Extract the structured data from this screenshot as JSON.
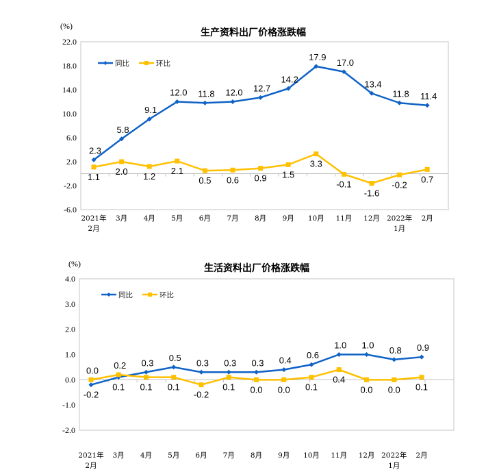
{
  "chart_data": [
    {
      "type": "line",
      "title": "生产资料出厂价格涨跌幅",
      "unit_label": "(%)",
      "categories": [
        [
          "2021年",
          "2月"
        ],
        [
          "3月"
        ],
        [
          "4月"
        ],
        [
          "5月"
        ],
        [
          "6月"
        ],
        [
          "7月"
        ],
        [
          "8月"
        ],
        [
          "9月"
        ],
        [
          "10月"
        ],
        [
          "11月"
        ],
        [
          "12月"
        ],
        [
          "2022年",
          "1月"
        ],
        [
          "2月"
        ]
      ],
      "yticks": [
        "22.0",
        "18.0",
        "14.0",
        "10.0",
        "6.0",
        "2.0",
        "-2.0",
        "-6.0"
      ],
      "ytick_values": [
        22,
        18,
        14,
        10,
        6,
        2,
        -2,
        -6
      ],
      "ylim": [
        -6,
        22
      ],
      "legend_position": "top-left",
      "series": [
        {
          "name": "同比",
          "color": "#0F62C7",
          "marker": "diamond",
          "values": [
            2.3,
            5.8,
            9.1,
            12.0,
            11.8,
            12.0,
            12.7,
            14.2,
            17.9,
            17.0,
            13.4,
            11.8,
            11.4
          ],
          "labels": [
            "2.3",
            "5.8",
            "9.1",
            "12.0",
            "11.8",
            "12.0",
            "12.7",
            "14.2",
            "17.9",
            "17.0",
            "13.4",
            "11.8",
            "11.4"
          ]
        },
        {
          "name": "环比",
          "color": "#FFC000",
          "marker": "square",
          "values": [
            1.1,
            2.0,
            1.2,
            2.1,
            0.5,
            0.6,
            0.9,
            1.5,
            3.3,
            -0.1,
            -1.6,
            -0.2,
            0.7
          ],
          "labels": [
            "1.1",
            "2.0",
            "1.2",
            "2.1",
            "0.5",
            "0.6",
            "0.9",
            "1.5",
            "3.3",
            "-0.1",
            "-1.6",
            "-0.2",
            "0.7"
          ]
        }
      ]
    },
    {
      "type": "line",
      "title": "生活资料出厂价格涨跌幅",
      "unit_label": "(%)",
      "categories": [
        [
          "2021年",
          "2月"
        ],
        [
          "3月"
        ],
        [
          "4月"
        ],
        [
          "5月"
        ],
        [
          "6月"
        ],
        [
          "7月"
        ],
        [
          "8月"
        ],
        [
          "9月"
        ],
        [
          "10月"
        ],
        [
          "11月"
        ],
        [
          "12月"
        ],
        [
          "2022年",
          "1月"
        ],
        [
          "2月"
        ]
      ],
      "yticks": [
        "4.0",
        "3.0",
        "2.0",
        "1.0",
        "0.0",
        "-1.0",
        "-2.0"
      ],
      "ytick_values": [
        4,
        3,
        2,
        1,
        0,
        -1,
        -2
      ],
      "ylim": [
        -2,
        4
      ],
      "legend_position": "top-left",
      "series": [
        {
          "name": "同比",
          "color": "#0F62C7",
          "marker": "diamond",
          "values": [
            -0.2,
            0.1,
            0.3,
            0.5,
            0.3,
            0.3,
            0.3,
            0.4,
            0.6,
            1.0,
            1.0,
            0.8,
            0.9
          ],
          "labels": [
            "-0.2",
            "0.1",
            "0.3",
            "0.5",
            "0.3",
            "0.3",
            "0.3",
            "0.4",
            "0.6",
            "1.0",
            "1.0",
            "0.8",
            "0.9"
          ]
        },
        {
          "name": "环比",
          "color": "#FFC000",
          "marker": "square",
          "values": [
            0.0,
            0.2,
            0.1,
            0.1,
            -0.2,
            0.1,
            0.0,
            0.0,
            0.1,
            0.4,
            0.0,
            0.0,
            0.1
          ],
          "labels": [
            "0.0",
            "0.2",
            "0.1",
            "0.1",
            "-0.2",
            "0.1",
            "0.0",
            "0.0",
            "0.1",
            "0.4",
            "0.0",
            "0.0",
            "0.1"
          ]
        }
      ]
    }
  ]
}
